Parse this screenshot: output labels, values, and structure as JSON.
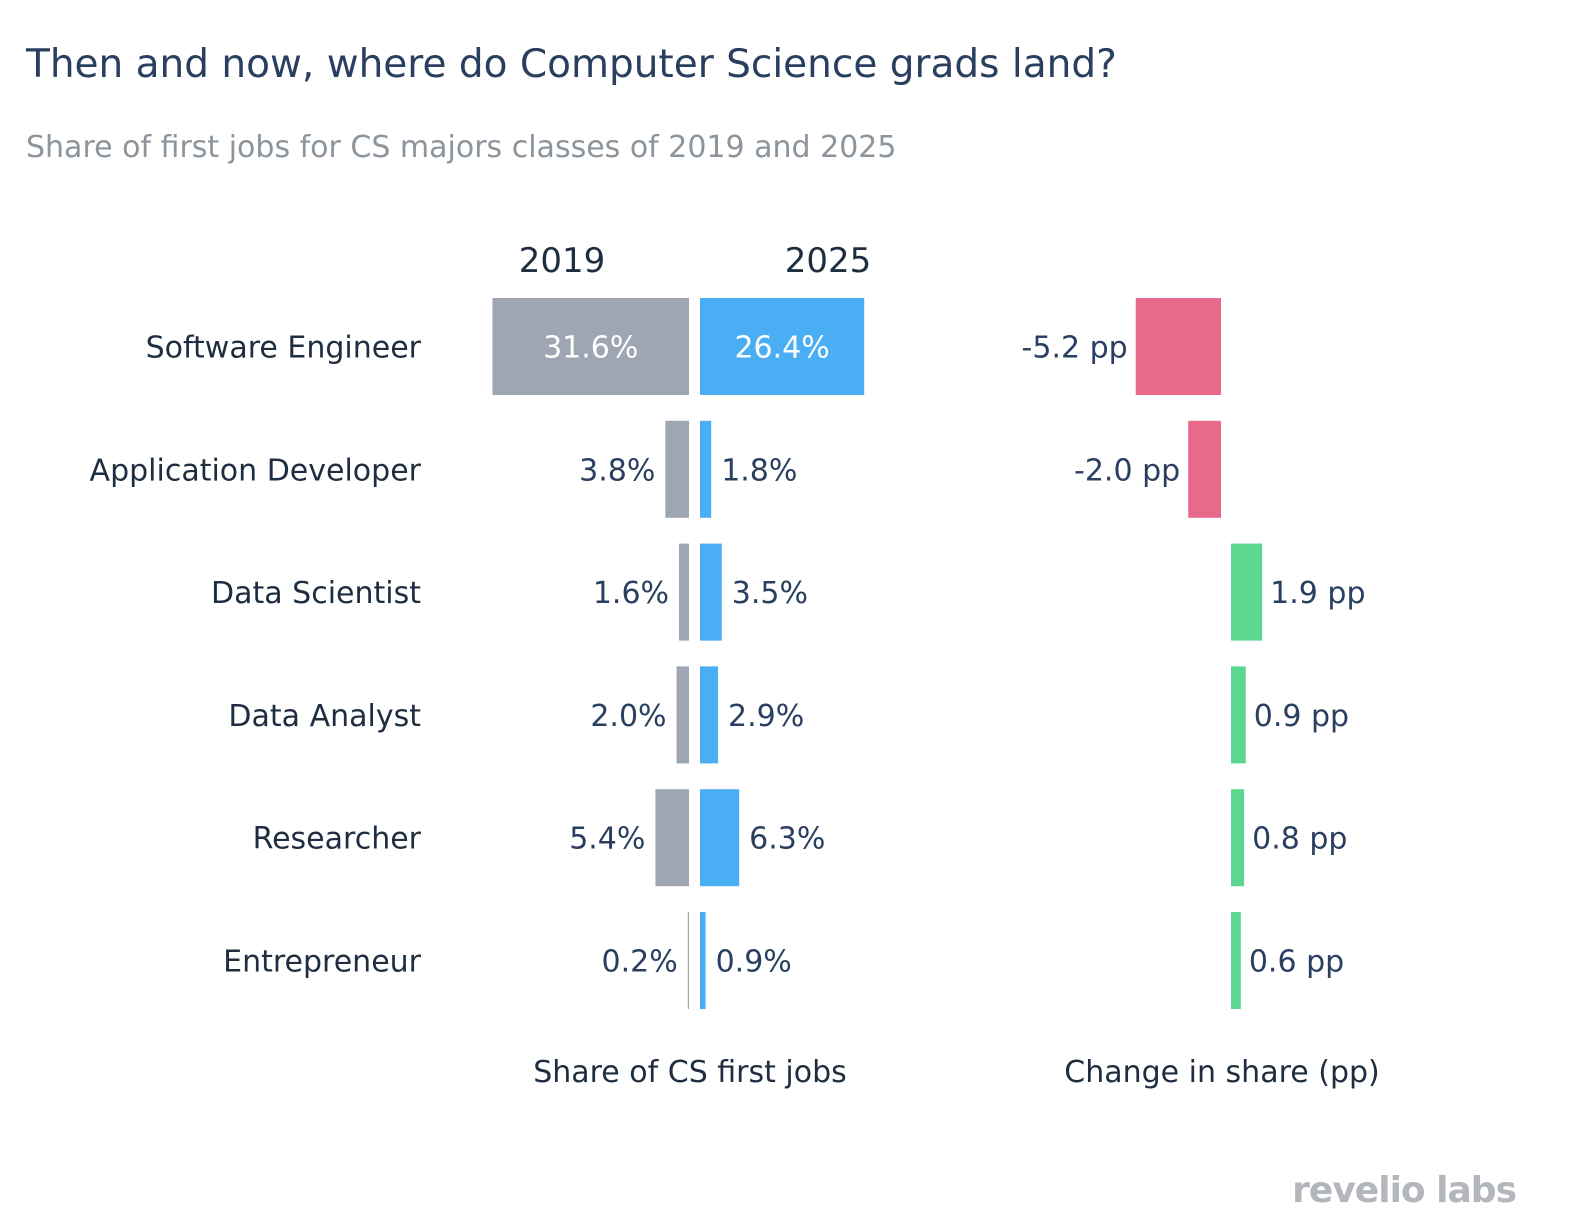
{
  "title": "Then and now, where do Computer Science grads land?",
  "subtitle": "Share of first jobs for CS majors classes of 2019 and 2025",
  "logo": "revelio labs",
  "chart_data": {
    "type": "bar",
    "orientation": "horizontal",
    "categories": [
      "Software Engineer",
      "Application Developer",
      "Data Scientist",
      "Data Analyst",
      "Researcher",
      "Entrepreneur"
    ],
    "series": [
      {
        "name": "2019",
        "values": [
          31.6,
          3.8,
          1.6,
          2.0,
          5.4,
          0.2
        ],
        "labels": [
          "31.6%",
          "3.8%",
          "1.6%",
          "2.0%",
          "5.4%",
          "0.2%"
        ],
        "color": "#9ea5b3"
      },
      {
        "name": "2025",
        "values": [
          26.4,
          1.8,
          3.5,
          2.9,
          6.3,
          0.9
        ],
        "labels": [
          "26.4%",
          "1.8%",
          "3.5%",
          "2.9%",
          "6.3%",
          "0.9%"
        ],
        "color": "#4aaef5"
      },
      {
        "name": "Change",
        "values": [
          -5.2,
          -2.0,
          1.9,
          0.9,
          0.8,
          0.6
        ],
        "labels": [
          "-5.2 pp",
          "-2.0 pp",
          "1.9 pp",
          "0.9 pp",
          "0.8 pp",
          "0.6 pp"
        ]
      }
    ],
    "negative_color": "#e8698a",
    "positive_color": "#5dd68f",
    "column_headers": [
      "2019",
      "2025"
    ],
    "xlabel_share": "Share of CS first jobs",
    "xlabel_change": "Change in share (pp)"
  }
}
